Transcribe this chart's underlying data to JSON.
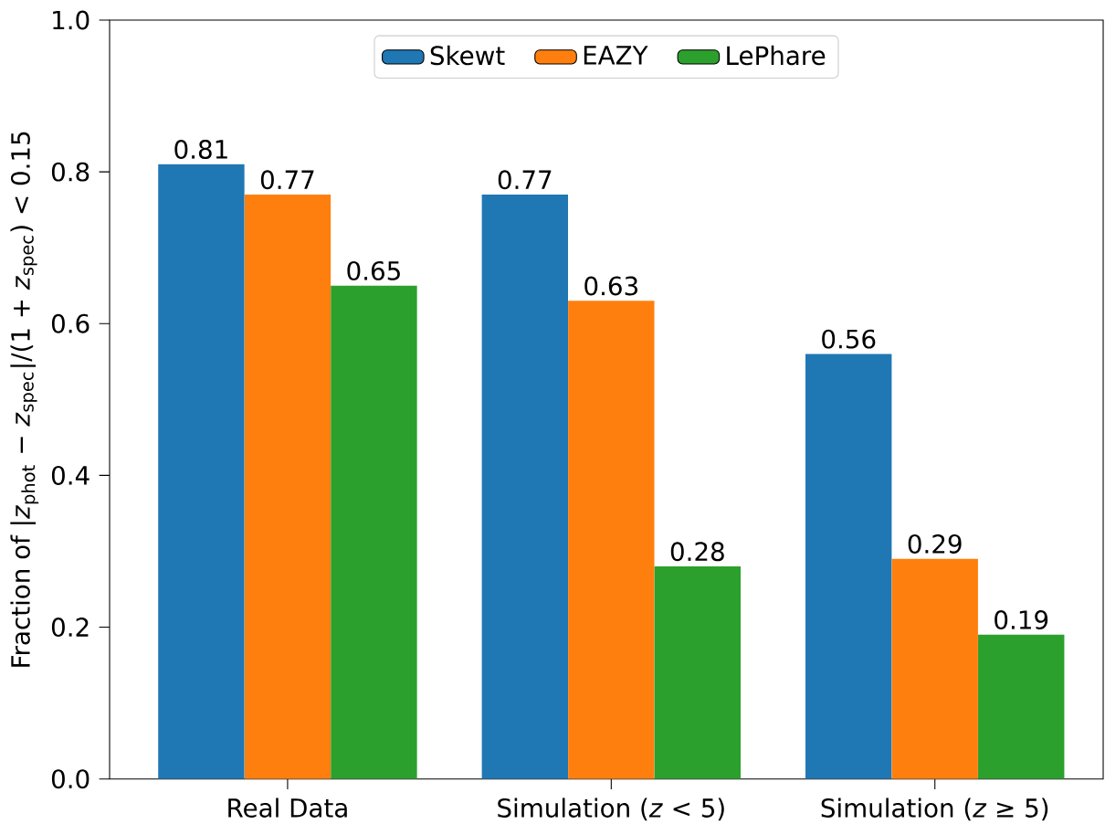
{
  "chart_data": {
    "type": "bar",
    "ylabel": "Fraction of |*z*$_{phot}$ − *z*$_{spec}$|/(1 + *z*$_{spec}$) < 0.15",
    "categories": [
      "Real Data",
      "Simulation (*z* < 5)",
      "Simulation (*z* ≥ 5)"
    ],
    "series": [
      {
        "name": "Skewt",
        "color": "#1f77b4",
        "values": [
          0.81,
          0.77,
          0.56
        ]
      },
      {
        "name": "EAZY",
        "color": "#ff7f0e",
        "values": [
          0.77,
          0.63,
          0.29
        ]
      },
      {
        "name": "LePhare",
        "color": "#2ca02c",
        "values": [
          0.65,
          0.28,
          0.19
        ]
      }
    ],
    "ylim": [
      0,
      1.0
    ],
    "yticks": [
      {
        "value": 0,
        "label": "0.0"
      },
      0.2,
      0.4,
      0.6,
      0.8,
      {
        "value": 1.0,
        "label": "1.0"
      }
    ],
    "data_labels": true,
    "legend": "top"
  }
}
